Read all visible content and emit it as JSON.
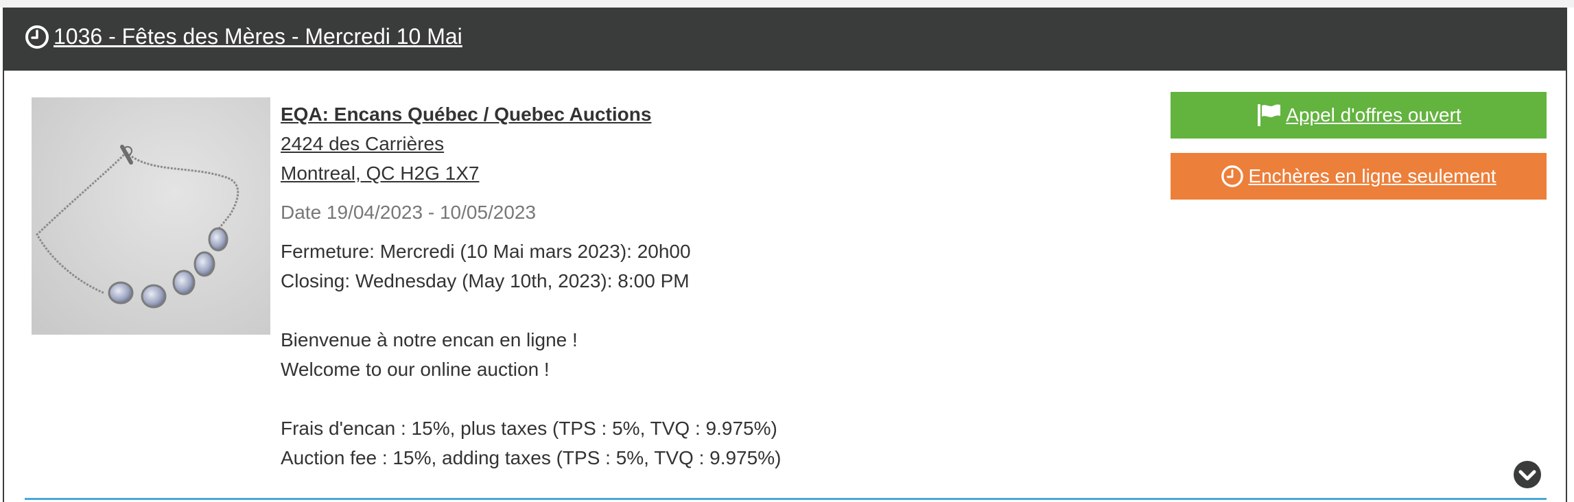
{
  "header": {
    "title": "1036 - Fêtes des Mères - Mercredi 10 Mai",
    "icon": "clock-icon"
  },
  "auction": {
    "image": "bracelet-thumbnail",
    "organization": "EQA: Encans Québec / Quebec Auctions",
    "address_line1": "2424 des Carrières",
    "address_line2": "Montreal, QC H2G 1X7",
    "date": "Date 19/04/2023 - 10/05/2023",
    "closing_fr": "Fermeture: Mercredi (10 Mai mars 2023): 20h00",
    "closing_en": "Closing: Wednesday (May 10th, 2023): 8:00 PM",
    "welcome_fr": "Bienvenue à notre encan en ligne !",
    "welcome_en": "Welcome to our online auction !",
    "fee_fr": "Frais d'encan : 15%, plus taxes (TPS : 5%, TVQ : 9.975%)",
    "fee_en": "Auction fee : 15%, adding taxes (TPS : 5%, TVQ : 9.975%)"
  },
  "buttons": {
    "open_tender": "Appel d'offres ouvert",
    "online_only": "Enchères en ligne seulement"
  },
  "colors": {
    "header_bg": "#3a3b3b",
    "green": "#63b33f",
    "orange": "#ec7f3a",
    "divider": "#47a8d8"
  },
  "icons": [
    "clock-icon",
    "flag-icon",
    "chevron-down-icon"
  ]
}
